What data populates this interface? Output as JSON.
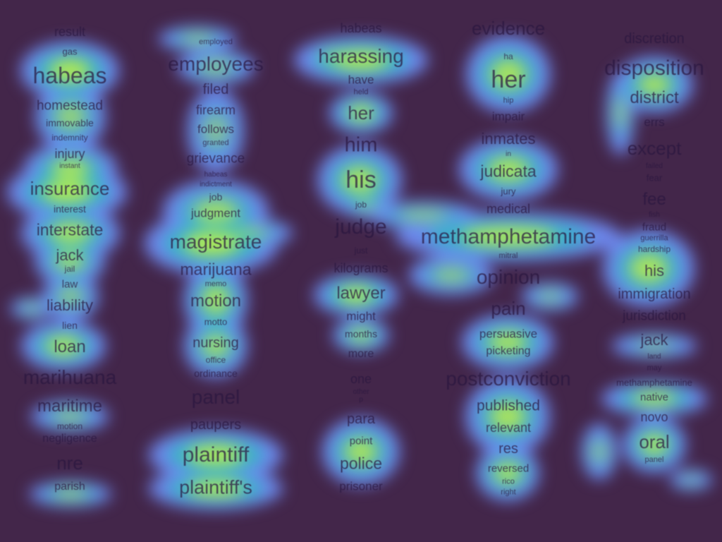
{
  "colors": {
    "background": "#43264a",
    "glow_outer": "#6f8cf4",
    "glow_mid": "#33b9c4",
    "glow_core": "#bfef45",
    "text": "#2a1740"
  },
  "columns": [
    {
      "id": "col1",
      "words": [
        "result",
        "gas",
        "habeas",
        "homestead",
        "immovable",
        "indemnity",
        "injury",
        "instant",
        "insurance",
        "interest",
        "interstate",
        "jack",
        "jail",
        "law",
        "liability",
        "lien",
        "loan",
        "marihuana",
        "maritime",
        "motion",
        "negligence",
        "nre",
        "parish"
      ]
    },
    {
      "id": "col2",
      "words": [
        "employed",
        "employees",
        "filed",
        "firearm",
        "follows",
        "granted",
        "grievance",
        "habeas",
        "indictment",
        "job",
        "judgment",
        "magistrate",
        "marijuana",
        "memo",
        "motion",
        "motto",
        "nursing",
        "office",
        "ordinance",
        "panel",
        "paupers",
        "plaintiff",
        "plaintiff's"
      ]
    },
    {
      "id": "col3",
      "words": [
        "habeas",
        "harassing",
        "have",
        "held",
        "her",
        "him",
        "his",
        "job",
        "judge",
        "just",
        "kilograms",
        "lawyer",
        "might",
        "months",
        "more",
        "one",
        "other",
        "p",
        "para",
        "point",
        "police",
        "prisoner"
      ]
    },
    {
      "id": "col4",
      "words": [
        "evidence",
        "ha",
        "her",
        "hip",
        "impair",
        "inmates",
        "in",
        "judicata",
        "jury",
        "medical",
        "methamphetamine",
        "mitral",
        "opinion",
        "pain",
        "persuasive",
        "picketing",
        "postconviction",
        "published",
        "relevant",
        "res",
        "reversed",
        "rico",
        "right"
      ]
    },
    {
      "id": "col5",
      "words": [
        "discretion",
        "disposition",
        "district",
        "errs",
        "except",
        "failed",
        "fear",
        "fee",
        "fish",
        "fraud",
        "guerrilla",
        "hardship",
        "his",
        "immigration",
        "jurisdiction",
        "jack",
        "land",
        "may",
        "methamphetamine",
        "native",
        "novo",
        "oral",
        "panel"
      ]
    }
  ]
}
